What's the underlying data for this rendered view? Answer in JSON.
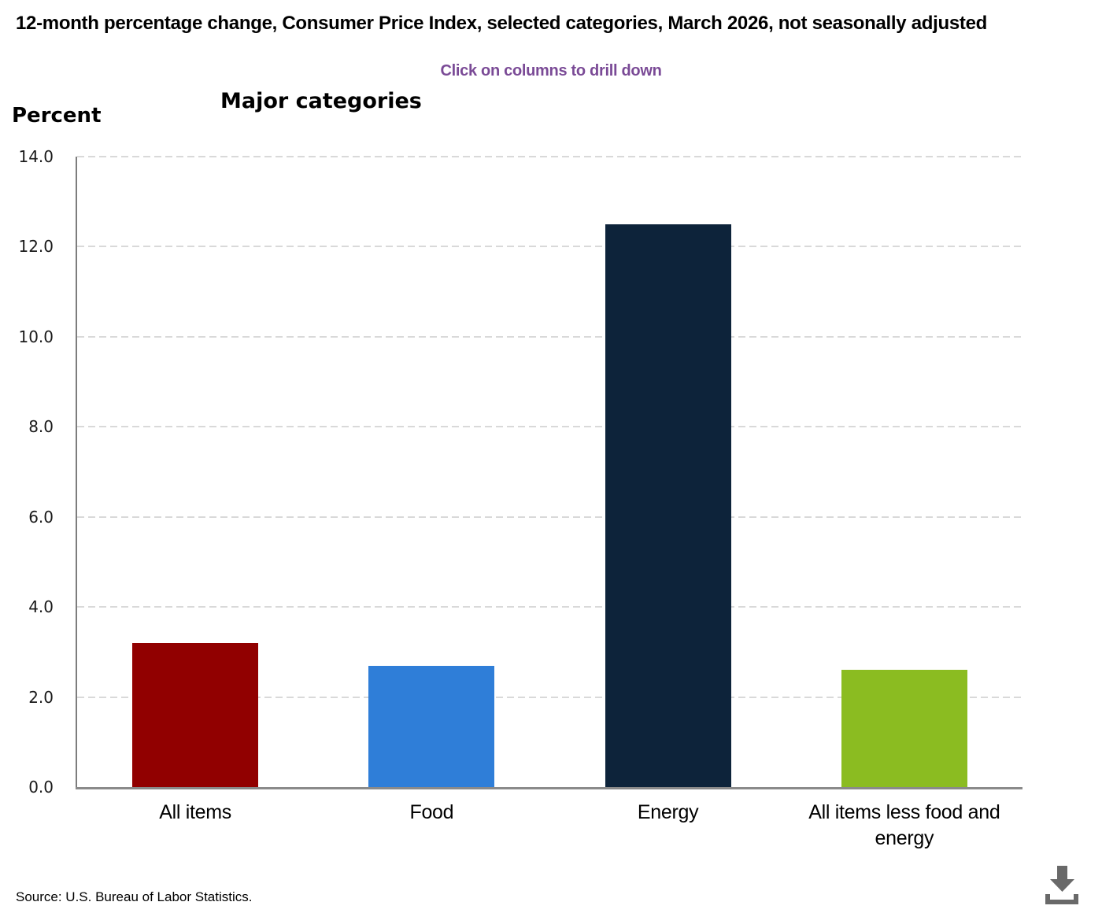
{
  "header": {
    "title": "12-month percentage change, Consumer Price Index, selected categories, March 2026, not seasonally adjusted",
    "drilldown_hint": "Click on columns to drill down"
  },
  "chart_data": {
    "type": "bar",
    "title": "Major categories",
    "ylabel": "Percent",
    "xlabel": "",
    "categories": [
      "All items",
      "Food",
      "Energy",
      "All items less food and energy"
    ],
    "values": [
      3.2,
      2.7,
      12.5,
      2.6
    ],
    "bar_colors": [
      "#910000",
      "#2f7ed8",
      "#0d233a",
      "#8bbc21"
    ],
    "ylim": [
      0,
      14
    ],
    "ytick_interval": 2,
    "ytick_labels": [
      "0.0",
      "2.0",
      "4.0",
      "6.0",
      "8.0",
      "10.0",
      "12.0",
      "14.0"
    ],
    "grid": "horizontal-dashed",
    "legend": "none"
  },
  "footer": {
    "source": "Source: U.S. Bureau of Labor Statistics."
  },
  "icons": {
    "download": "download-icon"
  },
  "colors": {
    "hint_purple": "#7a4a96",
    "grid_gray": "#d9d9d9",
    "axis_gray": "#8a8a8a",
    "icon_gray": "#696969",
    "title_black": "#000000"
  }
}
